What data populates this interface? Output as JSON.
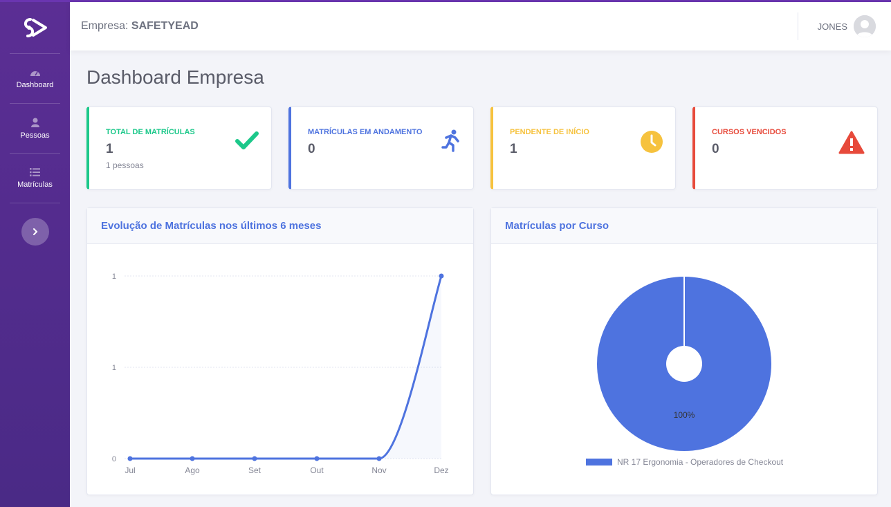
{
  "header": {
    "company_label": "Empresa:",
    "company_name": "SAFETYEAD",
    "user_name": "JONES"
  },
  "sidebar": {
    "items": [
      {
        "label": "Dashboard",
        "icon": "tachometer-icon"
      },
      {
        "label": "Pessoas",
        "icon": "user-icon"
      },
      {
        "label": "Matrículas",
        "icon": "list-icon"
      }
    ]
  },
  "page": {
    "title": "Dashboard Empresa"
  },
  "stats": [
    {
      "label": "TOTAL DE MATRÍCULAS",
      "value": "1",
      "sub": "1 pessoas",
      "color": "#1cc88a",
      "icon": "check-icon"
    },
    {
      "label": "MATRÍCULAS EM ANDAMENTO",
      "value": "0",
      "sub": "",
      "color": "#4e73df",
      "icon": "running-icon"
    },
    {
      "label": "PENDENTE DE INÍCIO",
      "value": "1",
      "sub": "",
      "color": "#f6c23e",
      "icon": "clock-icon"
    },
    {
      "label": "CURSOS VENCIDOS",
      "value": "0",
      "sub": "",
      "color": "#e74a3b",
      "icon": "warning-icon"
    }
  ],
  "line_chart": {
    "title": "Evolução de Matrículas nos últimos 6 meses",
    "y_tick_labels": [
      "1",
      "1",
      "0"
    ]
  },
  "pie_chart": {
    "title": "Matrículas por Curso",
    "slice_label": "100%"
  },
  "chart_data": [
    {
      "type": "line",
      "title": "Evolução de Matrículas nos últimos 6 meses",
      "categories": [
        "Jul",
        "Ago",
        "Set",
        "Out",
        "Nov",
        "Dez"
      ],
      "values": [
        0,
        0,
        0,
        0,
        0,
        1
      ],
      "ylim": [
        0,
        1
      ],
      "grid": true,
      "color": "#4e73df"
    },
    {
      "type": "pie",
      "title": "Matrículas por Curso",
      "categories": [
        "NR 17 Ergonomia - Operadores de Checkout"
      ],
      "values": [
        100
      ],
      "legend": "bottom",
      "color": "#4e73df"
    }
  ]
}
